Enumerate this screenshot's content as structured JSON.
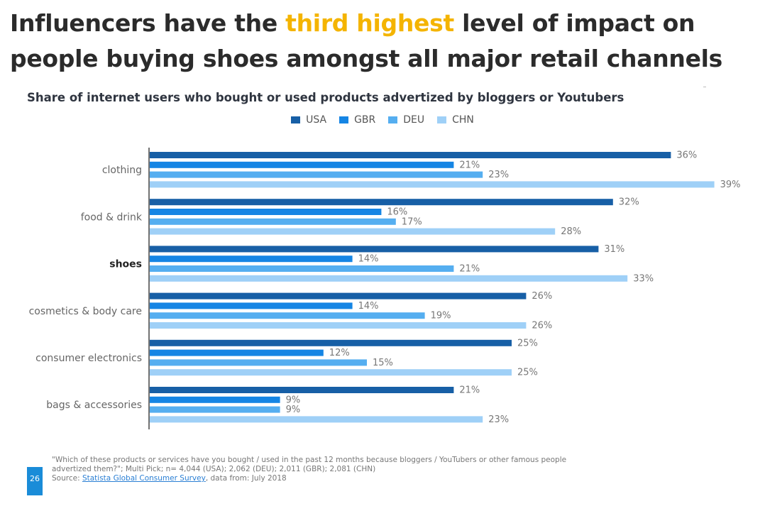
{
  "headline": {
    "part1": "Influencers have the ",
    "highlight": "third highest",
    "part2": " level of impact on people buying shoes amongst all major retail channels"
  },
  "chart_data": {
    "type": "bar",
    "orientation": "horizontal",
    "title": "Share of internet users who bought or used products advertized by bloggers or Youtubers",
    "categories": [
      "clothing",
      "food & drink",
      "shoes",
      "cosmetics & body care",
      "consumer electronics",
      "bags & accessories"
    ],
    "highlighted_category": "shoes",
    "series": [
      {
        "name": "USA",
        "color": "#175fa6",
        "values": [
          36,
          32,
          31,
          26,
          25,
          21
        ]
      },
      {
        "name": "GBR",
        "color": "#1585e4",
        "values": [
          21,
          16,
          14,
          14,
          12,
          9
        ]
      },
      {
        "name": "DEU",
        "color": "#55aef0",
        "values": [
          23,
          17,
          21,
          19,
          15,
          9
        ]
      },
      {
        "name": "CHN",
        "color": "#9fd0f7",
        "values": [
          39,
          28,
          33,
          26,
          25,
          23
        ]
      }
    ],
    "value_suffix": "%",
    "xlim": [
      0,
      39
    ],
    "legend_position": "top-center",
    "grid": false
  },
  "footnote": {
    "question": "\"Which of these products or services have you bought / used in the past 12 months because bloggers / YouTubers or other famous people advertized them?\"; Multi Pick; n= 4,044 (USA); 2,062 (DEU); 2,011 (GBR); 2,081 (CHN)",
    "source_label": "Source: ",
    "source_link": "Statista Global Consumer Survey",
    "source_suffix": ", data from: July 2018"
  },
  "page_number": "26"
}
